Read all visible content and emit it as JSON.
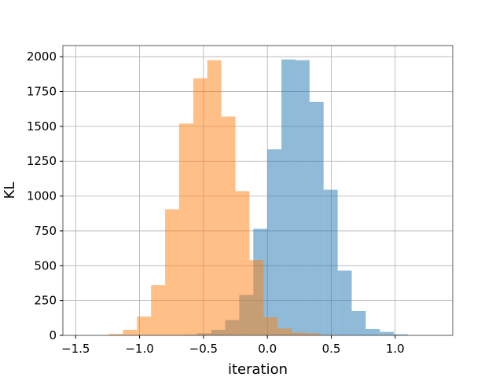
{
  "chart_data": {
    "type": "histogram",
    "title": "",
    "xlabel": "iteration",
    "ylabel": "KL",
    "xlim": [
      -1.6,
      1.45
    ],
    "ylim": [
      0,
      2080
    ],
    "grid": true,
    "x_ticks": [
      -1.5,
      -1.0,
      -0.5,
      0.0,
      0.5,
      1.0
    ],
    "x_tick_labels": [
      "−1.5",
      "−1.0",
      "−0.5",
      "0.0",
      "0.5",
      "1.0"
    ],
    "y_ticks": [
      0,
      250,
      500,
      750,
      1000,
      1250,
      1500,
      1750,
      2000
    ],
    "y_tick_labels": [
      "0",
      "250",
      "500",
      "750",
      "1000",
      "1250",
      "1500",
      "1750",
      "2000"
    ],
    "series": [
      {
        "color": "#1f77b4",
        "opacity": 0.5,
        "bins": [
          {
            "x0": -0.66,
            "x1": -0.55,
            "value": 5
          },
          {
            "x0": -0.55,
            "x1": -0.44,
            "value": 15
          },
          {
            "x0": -0.44,
            "x1": -0.33,
            "value": 40
          },
          {
            "x0": -0.33,
            "x1": -0.22,
            "value": 110
          },
          {
            "x0": -0.22,
            "x1": -0.11,
            "value": 290
          },
          {
            "x0": -0.11,
            "x1": 0.0,
            "value": 765
          },
          {
            "x0": 0.0,
            "x1": 0.11,
            "value": 1335
          },
          {
            "x0": 0.11,
            "x1": 0.22,
            "value": 1980
          },
          {
            "x0": 0.22,
            "x1": 0.33,
            "value": 1975
          },
          {
            "x0": 0.33,
            "x1": 0.44,
            "value": 1675
          },
          {
            "x0": 0.44,
            "x1": 0.55,
            "value": 1045
          },
          {
            "x0": 0.55,
            "x1": 0.66,
            "value": 465
          },
          {
            "x0": 0.66,
            "x1": 0.77,
            "value": 175
          },
          {
            "x0": 0.77,
            "x1": 0.88,
            "value": 45
          },
          {
            "x0": 0.88,
            "x1": 0.99,
            "value": 25
          },
          {
            "x0": 0.99,
            "x1": 1.1,
            "value": 8
          }
        ]
      },
      {
        "color": "#ff7f0e",
        "opacity": 0.5,
        "bins": [
          {
            "x0": -1.24,
            "x1": -1.13,
            "value": 10
          },
          {
            "x0": -1.13,
            "x1": -1.02,
            "value": 40
          },
          {
            "x0": -1.02,
            "x1": -0.91,
            "value": 135
          },
          {
            "x0": -0.91,
            "x1": -0.8,
            "value": 360
          },
          {
            "x0": -0.8,
            "x1": -0.69,
            "value": 905
          },
          {
            "x0": -0.69,
            "x1": -0.58,
            "value": 1520
          },
          {
            "x0": -0.58,
            "x1": -0.47,
            "value": 1845
          },
          {
            "x0": -0.47,
            "x1": -0.36,
            "value": 1975
          },
          {
            "x0": -0.36,
            "x1": -0.25,
            "value": 1570
          },
          {
            "x0": -0.25,
            "x1": -0.14,
            "value": 1035
          },
          {
            "x0": -0.14,
            "x1": -0.03,
            "value": 540
          },
          {
            "x0": -0.03,
            "x1": 0.08,
            "value": 130
          },
          {
            "x0": 0.08,
            "x1": 0.19,
            "value": 50
          },
          {
            "x0": 0.19,
            "x1": 0.3,
            "value": 20
          },
          {
            "x0": 0.3,
            "x1": 0.41,
            "value": 15
          },
          {
            "x0": 0.41,
            "x1": 0.52,
            "value": 5
          }
        ]
      }
    ]
  }
}
